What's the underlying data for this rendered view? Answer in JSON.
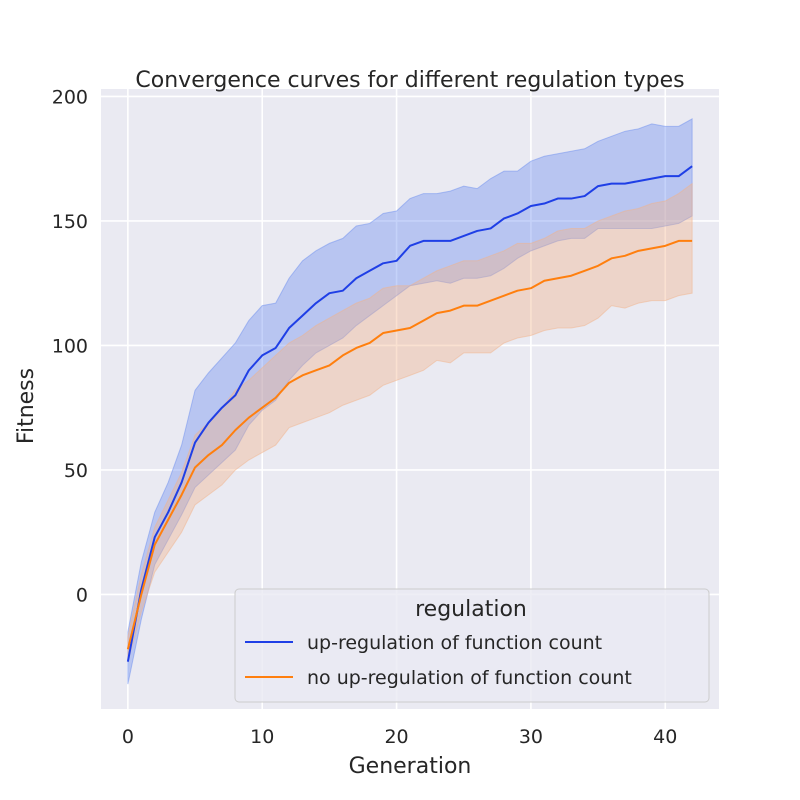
{
  "chart_data": {
    "type": "line",
    "title": "Convergence curves for different regulation types",
    "xlabel": "Generation",
    "ylabel": "Fitness",
    "xlim": [
      -2,
      44
    ],
    "ylim": [
      -46,
      203
    ],
    "xticks": [
      0,
      10,
      20,
      30,
      40
    ],
    "yticks": [
      0,
      50,
      100,
      150,
      200
    ],
    "grid": true,
    "legend": {
      "title": "regulation",
      "placement": "lower-right"
    },
    "x": [
      0,
      1,
      2,
      3,
      4,
      5,
      6,
      7,
      8,
      9,
      10,
      11,
      12,
      13,
      14,
      15,
      16,
      17,
      18,
      19,
      20,
      21,
      22,
      23,
      24,
      25,
      26,
      27,
      28,
      29,
      30,
      31,
      32,
      33,
      34,
      35,
      36,
      37,
      38,
      39,
      40,
      41,
      42
    ],
    "series": [
      {
        "name": "up-regulation of function count",
        "color": "#1f3fe6",
        "band_color": "#6d8ff0",
        "values": [
          -27,
          2,
          23,
          33,
          45,
          61,
          69,
          75,
          80,
          90,
          96,
          99,
          107,
          112,
          117,
          121,
          122,
          127,
          130,
          133,
          134,
          140,
          142,
          142,
          142,
          144,
          146,
          147,
          151,
          153,
          156,
          157,
          159,
          159,
          160,
          164,
          165,
          165,
          166,
          167,
          168,
          168,
          172
        ],
        "lower": [
          -36,
          -10,
          12,
          22,
          32,
          43,
          48,
          53,
          58,
          68,
          74,
          78,
          86,
          92,
          97,
          100,
          103,
          108,
          112,
          116,
          120,
          124,
          125,
          126,
          125,
          127,
          127,
          128,
          131,
          135,
          138,
          140,
          142,
          143,
          143,
          147,
          147,
          147,
          147,
          147,
          148,
          149,
          152
        ],
        "upper": [
          -15,
          13,
          33,
          45,
          60,
          82,
          89,
          95,
          101,
          110,
          116,
          117,
          127,
          134,
          138,
          141,
          143,
          148,
          149,
          153,
          154,
          159,
          161,
          161,
          162,
          164,
          163,
          167,
          170,
          170,
          174,
          176,
          177,
          178,
          179,
          182,
          184,
          186,
          187,
          189,
          188,
          188,
          191
        ]
      },
      {
        "name": "no up-regulation of function count",
        "color": "#ff7f0e",
        "band_color": "#f2b48c",
        "values": [
          -22,
          0,
          20,
          30,
          40,
          51,
          56,
          60,
          66,
          71,
          75,
          79,
          85,
          88,
          90,
          92,
          96,
          99,
          101,
          105,
          106,
          107,
          110,
          113,
          114,
          116,
          116,
          118,
          120,
          122,
          123,
          126,
          127,
          128,
          130,
          132,
          135,
          136,
          138,
          139,
          140,
          142,
          142
        ],
        "lower": [
          -27,
          -7,
          9,
          17,
          25,
          36,
          40,
          44,
          50,
          54,
          57,
          60,
          67,
          69,
          71,
          73,
          76,
          78,
          80,
          84,
          86,
          88,
          90,
          94,
          93,
          97,
          97,
          97,
          101,
          103,
          104,
          106,
          107,
          107,
          108,
          111,
          116,
          115,
          117,
          118,
          118,
          120,
          121
        ],
        "upper": [
          -17,
          8,
          27,
          38,
          49,
          64,
          69,
          75,
          82,
          86,
          91,
          96,
          101,
          104,
          108,
          111,
          114,
          117,
          119,
          123,
          124,
          124,
          127,
          130,
          132,
          134,
          134,
          136,
          138,
          141,
          141,
          143,
          146,
          147,
          147,
          150,
          152,
          154,
          155,
          157,
          158,
          161,
          165
        ]
      }
    ]
  }
}
